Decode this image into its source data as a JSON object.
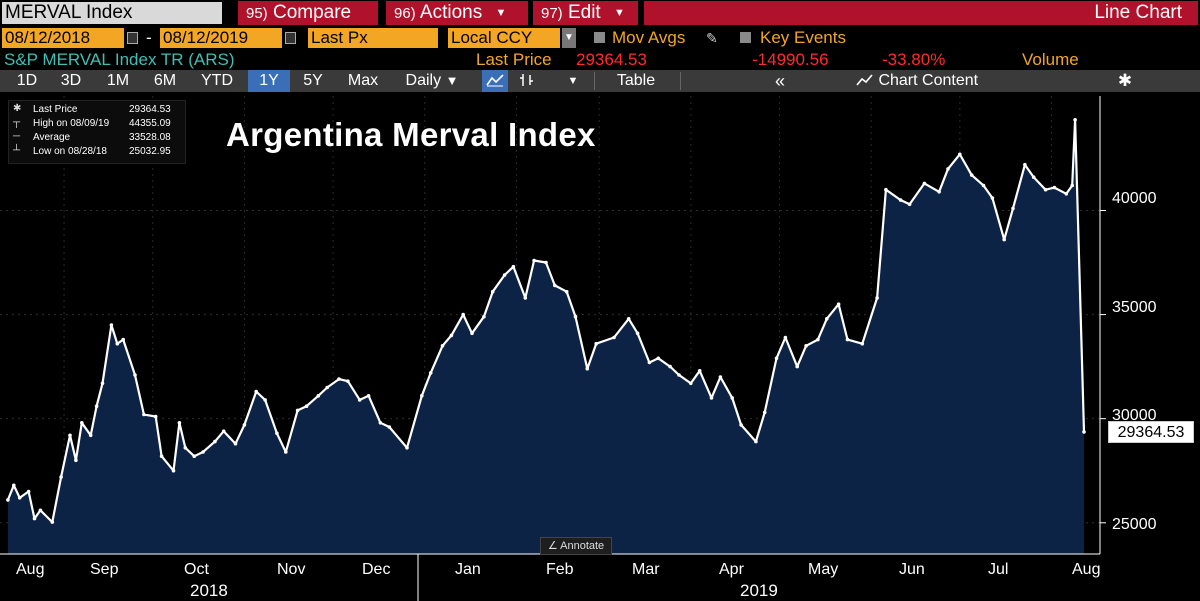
{
  "header": {
    "ticker": "MERVAL Index",
    "compare_num": "95)",
    "compare_label": "Compare",
    "actions_num": "96)",
    "actions_label": "Actions",
    "edit_num": "97)",
    "edit_label": "Edit",
    "chart_type": "Line Chart"
  },
  "range": {
    "start": "08/12/2018",
    "end": "08/12/2019",
    "field": "Last Px",
    "currency": "Local CCY",
    "mov_avgs": "Mov Avgs",
    "key_events": "Key Events"
  },
  "info": {
    "security": "S&P MERVAL Index TR (ARS)",
    "last_price_label": "Last Price",
    "last_price": "29364.53",
    "change": "-14990.56",
    "change_pct": "-33.80%",
    "volume_label": "Volume"
  },
  "toolbar": {
    "periods": [
      "1D",
      "3D",
      "1M",
      "6M",
      "YTD",
      "1Y",
      "5Y",
      "Max"
    ],
    "active_period": "1Y",
    "frequency": "Daily",
    "table_label": "Table",
    "chart_content_label": "Chart Content"
  },
  "legend": [
    {
      "label": "Last Price",
      "value": "29364.53"
    },
    {
      "label": "High on 08/09/19",
      "value": "44355.09"
    },
    {
      "label": "Average",
      "value": "33528.08"
    },
    {
      "label": "Low on 08/28/18",
      "value": "25032.95"
    }
  ],
  "annotate_label": "Annotate",
  "colors": {
    "fill": "#0c2346",
    "line": "#ffffff",
    "command_red": "#b0122b",
    "field_orange": "#f3a623",
    "active_blue": "#3a6fb8"
  },
  "chart_data": {
    "type": "area",
    "title": "Argentina Merval Index",
    "ylim": [
      23500,
      45500
    ],
    "yticks": [
      "25000",
      "30000",
      "35000",
      "40000"
    ],
    "x_labels": [
      "Aug",
      "Sep",
      "Oct",
      "Nov",
      "Dec",
      "Jan",
      "Feb",
      "Mar",
      "Apr",
      "May",
      "Jun",
      "Jul",
      "Aug"
    ],
    "years": [
      "2018",
      "2019"
    ],
    "last_value_label": "29364.53",
    "series": [
      {
        "x": [
          "2018-08-13",
          "2018-08-15",
          "2018-08-17",
          "2018-08-20",
          "2018-08-22",
          "2018-08-24",
          "2018-08-28",
          "2018-08-31",
          "2018-09-03",
          "2018-09-05",
          "2018-09-07",
          "2018-09-10",
          "2018-09-12",
          "2018-09-14",
          "2018-09-17",
          "2018-09-19",
          "2018-09-21",
          "2018-09-25",
          "2018-09-28",
          "2018-10-02",
          "2018-10-04",
          "2018-10-08",
          "2018-10-10",
          "2018-10-12",
          "2018-10-15",
          "2018-10-18",
          "2018-10-22",
          "2018-10-25",
          "2018-10-29",
          "2018-11-01",
          "2018-11-05",
          "2018-11-08",
          "2018-11-12",
          "2018-11-15",
          "2018-11-19",
          "2018-11-22",
          "2018-11-26",
          "2018-11-29",
          "2018-12-03",
          "2018-12-06",
          "2018-12-10",
          "2018-12-13",
          "2018-12-17",
          "2018-12-20",
          "2018-12-26",
          "2018-12-31",
          "2019-01-03",
          "2019-01-07",
          "2019-01-10",
          "2019-01-14",
          "2019-01-17",
          "2019-01-21",
          "2019-01-24",
          "2019-01-28",
          "2019-01-31",
          "2019-02-04",
          "2019-02-07",
          "2019-02-11",
          "2019-02-14",
          "2019-02-18",
          "2019-02-21",
          "2019-02-25",
          "2019-02-28",
          "2019-03-06",
          "2019-03-11",
          "2019-03-14",
          "2019-03-18",
          "2019-03-21",
          "2019-03-25",
          "2019-03-28",
          "2019-04-01",
          "2019-04-04",
          "2019-04-08",
          "2019-04-11",
          "2019-04-15",
          "2019-04-18",
          "2019-04-23",
          "2019-04-26",
          "2019-04-30",
          "2019-05-03",
          "2019-05-07",
          "2019-05-10",
          "2019-05-14",
          "2019-05-17",
          "2019-05-21",
          "2019-05-24",
          "2019-05-29",
          "2019-06-03",
          "2019-06-06",
          "2019-06-11",
          "2019-06-14",
          "2019-06-19",
          "2019-06-24",
          "2019-06-27",
          "2019-07-01",
          "2019-07-05",
          "2019-07-09",
          "2019-07-12",
          "2019-07-16",
          "2019-07-19",
          "2019-07-23",
          "2019-07-26",
          "2019-07-30",
          "2019-08-02",
          "2019-08-06",
          "2019-08-08",
          "2019-08-09",
          "2019-08-12"
        ],
        "y": [
          26100,
          26800,
          26200,
          26500,
          25200,
          25600,
          25030,
          27200,
          29200,
          28000,
          29800,
          29200,
          30600,
          31700,
          34500,
          33600,
          33800,
          32100,
          30200,
          30100,
          28200,
          27500,
          29800,
          28600,
          28200,
          28400,
          28900,
          29400,
          28800,
          29700,
          31300,
          30900,
          29300,
          28400,
          30400,
          30600,
          31100,
          31500,
          31900,
          31800,
          30900,
          31100,
          29800,
          29600,
          28600,
          31100,
          32200,
          33500,
          34000,
          35000,
          34100,
          34900,
          36100,
          36900,
          37300,
          35800,
          37600,
          37500,
          36400,
          36100,
          34900,
          32400,
          33600,
          33900,
          34800,
          34100,
          32700,
          32900,
          32500,
          32100,
          31700,
          32300,
          31000,
          32000,
          31000,
          29700,
          28900,
          30300,
          32900,
          33900,
          32500,
          33500,
          33800,
          34800,
          35500,
          33800,
          33600,
          35800,
          41000,
          40500,
          40300,
          41300,
          40900,
          42000,
          42700,
          41700,
          41200,
          40600,
          38600,
          40100,
          42200,
          41600,
          41000,
          41100,
          40800,
          41200,
          44355,
          29364
        ]
      }
    ]
  }
}
